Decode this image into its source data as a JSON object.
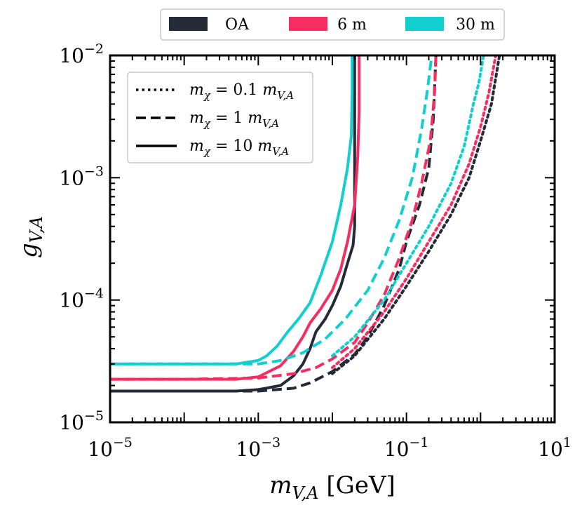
{
  "chart_data": {
    "type": "line",
    "xscale": "log",
    "yscale": "log",
    "xlim": [
      1e-05,
      10
    ],
    "ylim": [
      1e-05,
      0.01
    ],
    "xlabel_base": "m",
    "xlabel_sub": "V,A",
    "xlabel_unit": "[GeV]",
    "ylabel_base": "g",
    "ylabel_sub": "V,A",
    "x_ticks": [
      {
        "value": 1e-05,
        "base": "10",
        "exp": "−5"
      },
      {
        "value": 0.001,
        "base": "10",
        "exp": "−3"
      },
      {
        "value": 0.1,
        "base": "10",
        "exp": "−1"
      },
      {
        "value": 10,
        "base": "10",
        "exp": "1"
      }
    ],
    "y_ticks": [
      {
        "value": 1e-05,
        "base": "10",
        "exp": "−5"
      },
      {
        "value": 0.0001,
        "base": "10",
        "exp": "−4"
      },
      {
        "value": 0.001,
        "base": "10",
        "exp": "−3"
      },
      {
        "value": 0.01,
        "base": "10",
        "exp": "−2"
      }
    ],
    "detector_legend": [
      {
        "name": "OA",
        "color": "#252a37"
      },
      {
        "name": "6 m",
        "color": "#f62d60"
      },
      {
        "name": "30 m",
        "color": "#12cfcf"
      }
    ],
    "style_legend": [
      {
        "dash": "dotted",
        "text": "m_χ = 0.1 m_V,A",
        "base": "m",
        "sub": "χ",
        "mid": " = 0.1 ",
        "base2": "m",
        "sub2": "V,A"
      },
      {
        "dash": "dashed",
        "text": "m_χ = 1 m_V,A",
        "base": "m",
        "sub": "χ",
        "mid": " = 1 ",
        "base2": "m",
        "sub2": "V,A"
      },
      {
        "dash": "solid",
        "text": "m_χ = 10 m_V,A",
        "base": "m",
        "sub": "χ",
        "mid": " = 10 ",
        "base2": "m",
        "sub2": "V,A"
      }
    ],
    "series": [
      {
        "name": "OA, m_χ = 10 m_V,A",
        "detector": "OA",
        "dash": "solid",
        "color": "#252a37",
        "points": [
          [
            1e-05,
            1.8e-05
          ],
          [
            0.0001,
            1.8e-05
          ],
          [
            0.0005,
            1.8e-05
          ],
          [
            0.001,
            1.85e-05
          ],
          [
            0.002,
            2e-05
          ],
          [
            0.003,
            2.4e-05
          ],
          [
            0.004,
            3e-05
          ],
          [
            0.005,
            4e-05
          ],
          [
            0.006,
            5.5e-05
          ],
          [
            0.008,
            7e-05
          ],
          [
            0.01,
            9e-05
          ],
          [
            0.013,
            0.00013
          ],
          [
            0.016,
            0.0002
          ],
          [
            0.019,
            0.00028
          ],
          [
            0.02,
            0.0004
          ],
          [
            0.02,
            0.01
          ]
        ]
      },
      {
        "name": "6 m, m_χ = 10 m_V,A",
        "detector": "6 m",
        "dash": "solid",
        "color": "#f62d60",
        "points": [
          [
            1e-05,
            2.25e-05
          ],
          [
            0.0001,
            2.25e-05
          ],
          [
            0.0005,
            2.25e-05
          ],
          [
            0.001,
            2.35e-05
          ],
          [
            0.002,
            2.9e-05
          ],
          [
            0.003,
            3.8e-05
          ],
          [
            0.004,
            5e-05
          ],
          [
            0.005,
            6.5e-05
          ],
          [
            0.007,
            8.5e-05
          ],
          [
            0.01,
            0.00012
          ],
          [
            0.013,
            0.00018
          ],
          [
            0.016,
            0.0003
          ],
          [
            0.02,
            0.0006
          ],
          [
            0.022,
            0.0015
          ],
          [
            0.023,
            0.0035
          ],
          [
            0.023,
            0.01
          ]
        ]
      },
      {
        "name": "30 m, m_χ = 10 m_V,A",
        "detector": "30 m",
        "dash": "solid",
        "color": "#12cfcf",
        "points": [
          [
            1e-05,
            3e-05
          ],
          [
            0.0001,
            3e-05
          ],
          [
            0.0005,
            3e-05
          ],
          [
            0.001,
            3.2e-05
          ],
          [
            0.0013,
            3.5e-05
          ],
          [
            0.0018,
            4.2e-05
          ],
          [
            0.0025,
            5.5e-05
          ],
          [
            0.0035,
            7e-05
          ],
          [
            0.005,
            9.5e-05
          ],
          [
            0.007,
            0.00016
          ],
          [
            0.01,
            0.0003
          ],
          [
            0.013,
            0.0006
          ],
          [
            0.016,
            0.0012
          ],
          [
            0.018,
            0.0022
          ],
          [
            0.0185,
            0.005
          ],
          [
            0.0185,
            0.01
          ]
        ]
      },
      {
        "name": "OA, m_χ = 1 m_V,A",
        "detector": "OA",
        "dash": "dashed",
        "color": "#252a37",
        "points": [
          [
            1e-05,
            1.8e-05
          ],
          [
            0.0001,
            1.8e-05
          ],
          [
            0.001,
            1.8e-05
          ],
          [
            0.003,
            1.9e-05
          ],
          [
            0.005,
            2.1e-05
          ],
          [
            0.01,
            2.6e-05
          ],
          [
            0.02,
            3.6e-05
          ],
          [
            0.03,
            5e-05
          ],
          [
            0.05,
            9e-05
          ],
          [
            0.08,
            0.00018
          ],
          [
            0.1,
            0.0003
          ],
          [
            0.15,
            0.0006
          ],
          [
            0.2,
            0.0012
          ],
          [
            0.23,
            0.003
          ],
          [
            0.25,
            0.01
          ]
        ]
      },
      {
        "name": "6 m, m_χ = 1 m_V,A",
        "detector": "6 m",
        "dash": "dashed",
        "color": "#f62d60",
        "points": [
          [
            1e-05,
            2.25e-05
          ],
          [
            0.0001,
            2.25e-05
          ],
          [
            0.001,
            2.3e-05
          ],
          [
            0.003,
            2.5e-05
          ],
          [
            0.006,
            2.8e-05
          ],
          [
            0.01,
            3.3e-05
          ],
          [
            0.02,
            4.5e-05
          ],
          [
            0.03,
            6.5e-05
          ],
          [
            0.05,
            0.00011
          ],
          [
            0.08,
            0.00022
          ],
          [
            0.12,
            0.00045
          ],
          [
            0.16,
            0.0009
          ],
          [
            0.21,
            0.002
          ],
          [
            0.24,
            0.005
          ],
          [
            0.25,
            0.01
          ]
        ]
      },
      {
        "name": "30 m, m_χ = 1 m_V,A",
        "detector": "30 m",
        "dash": "dashed",
        "color": "#12cfcf",
        "points": [
          [
            1e-05,
            3e-05
          ],
          [
            0.0001,
            3e-05
          ],
          [
            0.001,
            3e-05
          ],
          [
            0.002,
            3.2e-05
          ],
          [
            0.004,
            3.7e-05
          ],
          [
            0.008,
            4.8e-05
          ],
          [
            0.015,
            7e-05
          ],
          [
            0.03,
            0.00012
          ],
          [
            0.05,
            0.00022
          ],
          [
            0.08,
            0.00045
          ],
          [
            0.12,
            0.001
          ],
          [
            0.16,
            0.0025
          ],
          [
            0.19,
            0.005
          ],
          [
            0.22,
            0.01
          ]
        ]
      },
      {
        "name": "OA, m_χ = 0.1 m_V,A",
        "detector": "OA",
        "dash": "dotted",
        "color": "#252a37",
        "points": [
          [
            0.01,
            2.5e-05
          ],
          [
            0.02,
            3.5e-05
          ],
          [
            0.05,
            7e-05
          ],
          [
            0.1,
            0.00013
          ],
          [
            0.2,
            0.00025
          ],
          [
            0.4,
            0.0005
          ],
          [
            0.7,
            0.001
          ],
          [
            1.0,
            0.002
          ],
          [
            1.4,
            0.004
          ],
          [
            1.8,
            0.01
          ]
        ]
      },
      {
        "name": "6 m, m_χ = 0.1 m_V,A",
        "detector": "6 m",
        "dash": "dotted",
        "color": "#f62d60",
        "points": [
          [
            0.01,
            2.8e-05
          ],
          [
            0.02,
            4e-05
          ],
          [
            0.05,
            8e-05
          ],
          [
            0.1,
            0.00015
          ],
          [
            0.2,
            0.0003
          ],
          [
            0.4,
            0.0006
          ],
          [
            0.7,
            0.0013
          ],
          [
            1.0,
            0.0026
          ],
          [
            1.3,
            0.005
          ],
          [
            1.6,
            0.01
          ]
        ]
      },
      {
        "name": "30 m, m_χ = 0.1 m_V,A",
        "detector": "30 m",
        "dash": "dotted",
        "color": "#12cfcf",
        "points": [
          [
            0.01,
            3.5e-05
          ],
          [
            0.02,
            5e-05
          ],
          [
            0.05,
            0.0001
          ],
          [
            0.1,
            0.0002
          ],
          [
            0.2,
            0.0004
          ],
          [
            0.4,
            0.0009
          ],
          [
            0.6,
            0.0018
          ],
          [
            0.8,
            0.004
          ],
          [
            0.95,
            0.006
          ],
          [
            1.1,
            0.01
          ]
        ]
      }
    ]
  }
}
